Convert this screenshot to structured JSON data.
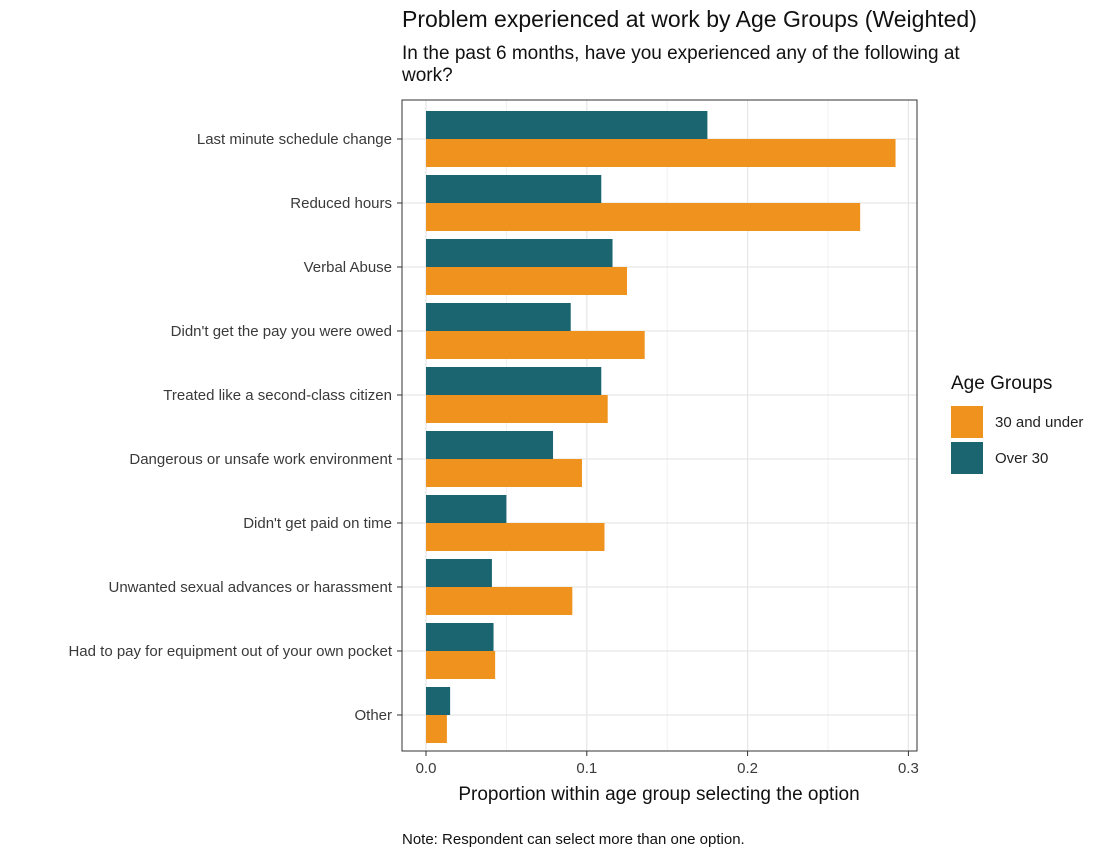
{
  "title": "Problem experienced at work by Age Groups (Weighted)",
  "subtitle": "In the past 6 months, have you experienced any of the following at work?",
  "note": "Note: Respondent can select more than one option.",
  "legend": {
    "title": "Age Groups",
    "items": [
      {
        "label": "30 and under",
        "color": "#F0931E"
      },
      {
        "label": "Over 30",
        "color": "#1B6570"
      }
    ]
  },
  "chart_data": {
    "type": "bar",
    "orientation": "horizontal",
    "title": "Problem experienced at work by Age Groups (Weighted)",
    "xlabel": "Proportion within age group selecting the option",
    "ylabel": "",
    "xlim": [
      0,
      0.3
    ],
    "x_ticks": [
      "0.0",
      "0.1",
      "0.2",
      "0.3"
    ],
    "grid": true,
    "legend_position": "right",
    "categories": [
      "Last minute schedule change",
      "Reduced hours",
      "Verbal Abuse",
      "Didn't get the pay you were owed",
      "Treated like a second-class citizen",
      "Dangerous or unsafe work environment",
      "Didn't get paid on time",
      "Unwanted sexual advances or harassment",
      "Had to pay for equipment out of your own pocket",
      "Other"
    ],
    "series": [
      {
        "name": "Over 30",
        "color": "#1B6570",
        "values": [
          0.175,
          0.109,
          0.116,
          0.09,
          0.109,
          0.079,
          0.05,
          0.041,
          0.042,
          0.015
        ]
      },
      {
        "name": "30 and under",
        "color": "#F0931E",
        "values": [
          0.292,
          0.27,
          0.125,
          0.136,
          0.113,
          0.097,
          0.111,
          0.091,
          0.043,
          0.013
        ]
      }
    ]
  }
}
